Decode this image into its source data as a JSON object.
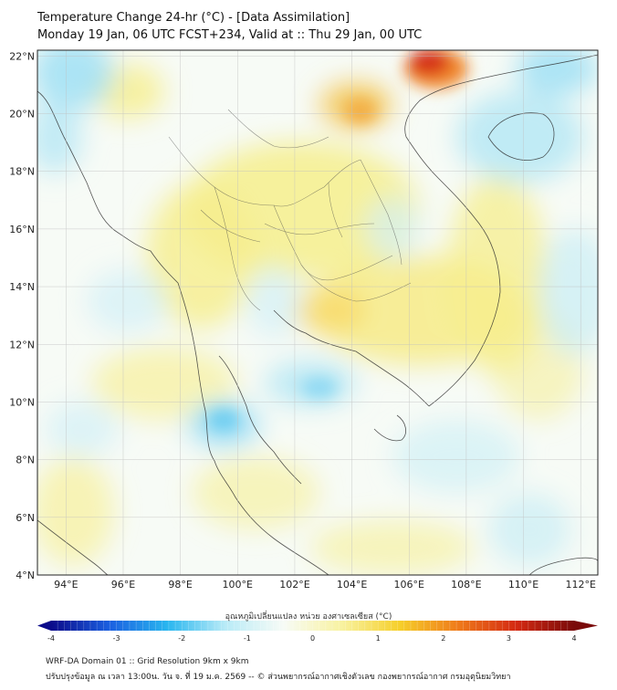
{
  "title": {
    "line1": "Temperature Change 24-hr (°C) - [Data Assimilation]",
    "line2": "Monday 19 Jan, 06 UTC FCST+234, Valid at :: Thu 29 Jan, 00 UTC"
  },
  "map": {
    "lat_labels": [
      "22°N",
      "20°N",
      "18°N",
      "16°N",
      "14°N",
      "12°N",
      "10°N",
      "8°N",
      "6°N",
      "4°N"
    ],
    "lon_labels": [
      "94°E",
      "96°E",
      "98°E",
      "100°E",
      "102°E",
      "104°E",
      "106°E",
      "108°E",
      "110°E",
      "112°E"
    ],
    "lat_range": [
      4,
      22.2
    ],
    "lon_range": [
      93,
      112.6
    ],
    "background": "#f7fbf6",
    "gridlines": true
  },
  "colorbar": {
    "title": "อุณหภูมิเปลี่ยนแปลง หน่วย องศาเซลเซียส (°C)",
    "ticks": [
      "-4",
      "-3",
      "-2",
      "-1",
      "0",
      "1",
      "2",
      "3",
      "4"
    ],
    "min": -4,
    "max": 4,
    "colors": [
      "#0b0b8a",
      "#1b5fe0",
      "#29b6ef",
      "#b9ebf7",
      "#f7fbf6",
      "#f8f2a0",
      "#f6cf2a",
      "#ef7b1a",
      "#d42a12",
      "#7a0a0a"
    ]
  },
  "footer": {
    "line1": "WRF-DA Domain 01 :: Grid Resolution 9km x 9km",
    "line2": "ปรับปรุงข้อมูล ณ เวลา 13:00น. วัน จ. ที่ 19 ม.ค. 2569 -- © ส่วนพยากรณ์อากาศเชิงตัวเลข กองพยากรณ์อากาศ กรมอุตุนิยมวิทยา"
  }
}
